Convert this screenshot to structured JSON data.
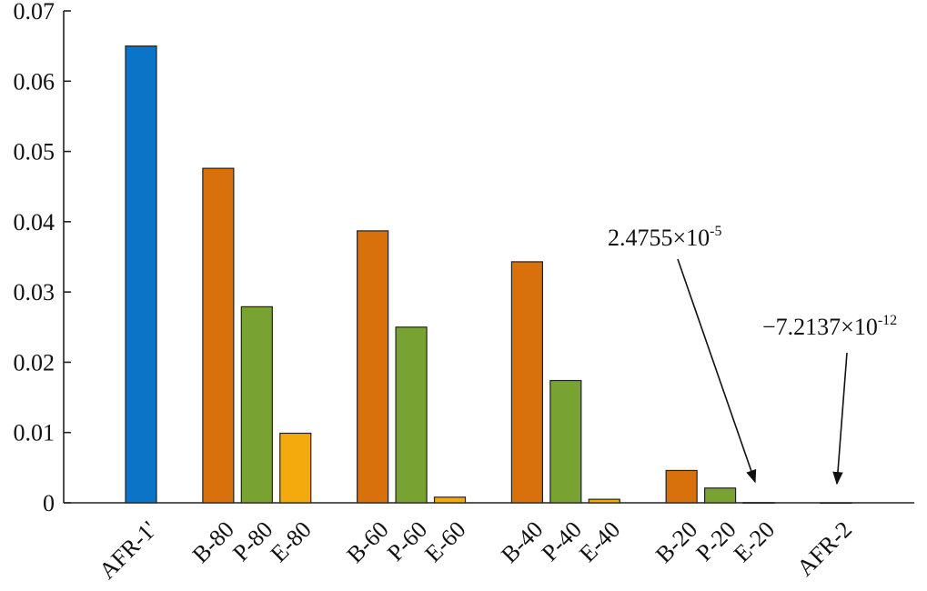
{
  "chart_data": {
    "type": "bar",
    "categories": [
      "AFR-1'",
      null,
      "B-80",
      "P-80",
      "E-80",
      null,
      "B-60",
      "P-60",
      "E-60",
      null,
      "B-40",
      "P-40",
      "E-40",
      null,
      "B-20",
      "P-20",
      "E-20",
      null,
      "AFR-2"
    ],
    "values": [
      0.065,
      null,
      0.0476,
      0.0279,
      0.0099,
      null,
      0.0387,
      0.025,
      0.0008,
      null,
      0.0343,
      0.0174,
      0.0005,
      null,
      0.0046,
      0.0021,
      2.4755e-05,
      null,
      -7.2137e-12
    ],
    "colors": [
      "#0b74c6",
      null,
      "#d8710b",
      "#78a332",
      "#f4a90c",
      null,
      "#d8710b",
      "#78a332",
      "#f4a90c",
      null,
      "#d8710b",
      "#78a332",
      "#f4a90c",
      null,
      "#d8710b",
      "#78a332",
      "#f4a90c",
      null,
      "#0b74c6"
    ],
    "ylim": [
      0,
      0.07
    ],
    "yticks": [
      0,
      0.01,
      0.02,
      0.03,
      0.04,
      0.05,
      0.06,
      0.07
    ],
    "annotations": [
      {
        "text": "2.4755×10",
        "exponent": "-5"
      },
      {
        "text": "−7.2137×10",
        "exponent": "-12"
      }
    ]
  }
}
